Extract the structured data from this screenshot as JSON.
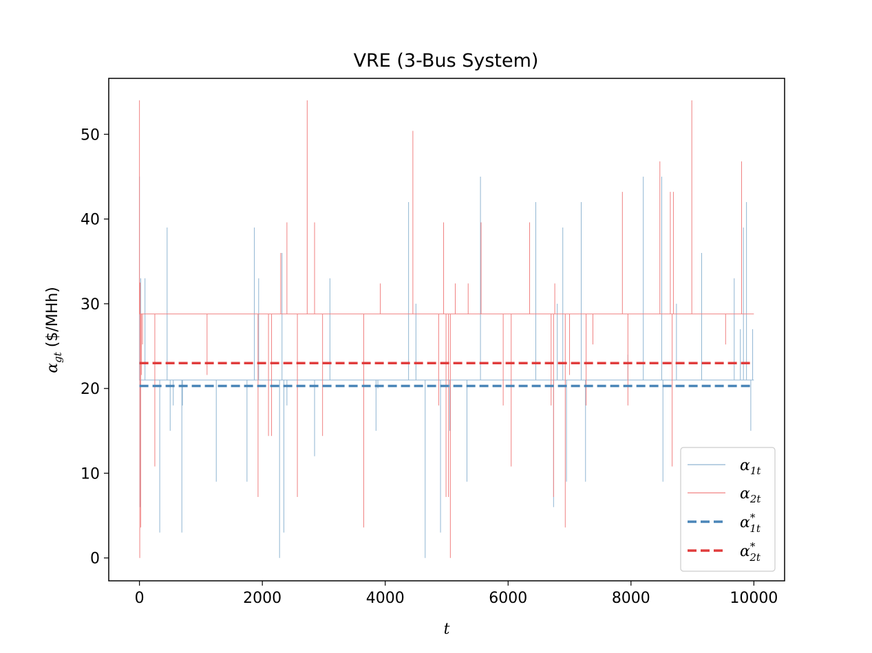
{
  "chart_data": {
    "type": "line",
    "title": "VRE (3-Bus System)",
    "xlabel_main": "t",
    "ylabel_symbol": "α",
    "ylabel_sub": "gt",
    "ylabel_unit": " ($/MHh)",
    "xlim": [
      -500,
      10500
    ],
    "ylim": [
      -2.7,
      56.6
    ],
    "xticks": [
      0,
      2000,
      4000,
      6000,
      8000,
      10000
    ],
    "yticks": [
      0,
      10,
      20,
      30,
      40,
      50
    ],
    "grid": false,
    "legend_position": "lower right",
    "series": [
      {
        "name": "α1t",
        "sub": "1t",
        "style": "solid-thin",
        "color": "#8fb5d2",
        "baseline": 21,
        "x_end": 10000,
        "spikes": [
          [
            0,
            45
          ],
          [
            10,
            6
          ],
          [
            20,
            33
          ],
          [
            30,
            21
          ],
          [
            90,
            33
          ],
          [
            330,
            3
          ],
          [
            450,
            39
          ],
          [
            500,
            15
          ],
          [
            550,
            18
          ],
          [
            690,
            3
          ],
          [
            700,
            18
          ],
          [
            1250,
            9
          ],
          [
            1750,
            9
          ],
          [
            1870,
            39
          ],
          [
            1940,
            33
          ],
          [
            2280,
            0
          ],
          [
            2320,
            36
          ],
          [
            2350,
            3
          ],
          [
            2400,
            18
          ],
          [
            2850,
            12
          ],
          [
            3100,
            33
          ],
          [
            3850,
            15
          ],
          [
            3880,
            20
          ],
          [
            4380,
            42
          ],
          [
            4500,
            30
          ],
          [
            4650,
            0
          ],
          [
            4900,
            3
          ],
          [
            5050,
            15
          ],
          [
            5330,
            9
          ],
          [
            5550,
            45
          ],
          [
            6450,
            42
          ],
          [
            6740,
            6
          ],
          [
            6800,
            30
          ],
          [
            6890,
            39
          ],
          [
            6950,
            9
          ],
          [
            7190,
            42
          ],
          [
            7260,
            9
          ],
          [
            7950,
            24
          ],
          [
            8200,
            45
          ],
          [
            8500,
            45
          ],
          [
            8520,
            9
          ],
          [
            8740,
            30
          ],
          [
            9150,
            36
          ],
          [
            9680,
            33
          ],
          [
            9780,
            27
          ],
          [
            9830,
            39
          ],
          [
            9880,
            42
          ],
          [
            9950,
            15
          ],
          [
            9980,
            27
          ]
        ]
      },
      {
        "name": "α2t",
        "sub": "2t",
        "style": "solid-thin",
        "color": "#f08080",
        "baseline": 28.8,
        "x_end": 10000,
        "spikes": [
          [
            0,
            54
          ],
          [
            5,
            0
          ],
          [
            12,
            32.5
          ],
          [
            20,
            3.6
          ],
          [
            30,
            21.6
          ],
          [
            50,
            25.2
          ],
          [
            250,
            10.8
          ],
          [
            1100,
            21.6
          ],
          [
            1930,
            7.2
          ],
          [
            2100,
            14.4
          ],
          [
            2150,
            14.4
          ],
          [
            2300,
            36
          ],
          [
            2400,
            39.6
          ],
          [
            2570,
            7.2
          ],
          [
            2730,
            54
          ],
          [
            2850,
            39.6
          ],
          [
            2980,
            14.4
          ],
          [
            3650,
            3.6
          ],
          [
            3920,
            32.4
          ],
          [
            4450,
            50.4
          ],
          [
            4870,
            18
          ],
          [
            4950,
            39.6
          ],
          [
            4990,
            7.2
          ],
          [
            5030,
            7.2
          ],
          [
            5060,
            0
          ],
          [
            5060,
            14.4
          ],
          [
            5140,
            32.4
          ],
          [
            5350,
            32.4
          ],
          [
            5560,
            39.6
          ],
          [
            5920,
            18
          ],
          [
            6050,
            10.8
          ],
          [
            6350,
            39.6
          ],
          [
            6700,
            18
          ],
          [
            6740,
            7.2
          ],
          [
            6760,
            32.4
          ],
          [
            6930,
            3.6
          ],
          [
            7000,
            21.6
          ],
          [
            7270,
            18
          ],
          [
            7380,
            25.2
          ],
          [
            7860,
            43.2
          ],
          [
            7950,
            18
          ],
          [
            8470,
            46.8
          ],
          [
            8640,
            43.2
          ],
          [
            8670,
            10.8
          ],
          [
            8690,
            43.2
          ],
          [
            8990,
            54
          ],
          [
            9540,
            25.2
          ],
          [
            9800,
            46.8
          ]
        ]
      },
      {
        "name": "α*1t",
        "sub": "1t",
        "sup": "*",
        "style": "dashed",
        "color": "#4a86b8",
        "x": [
          0,
          10000
        ],
        "y": [
          20.3,
          20.3
        ]
      },
      {
        "name": "α*2t",
        "sub": "2t",
        "sup": "*",
        "style": "dashed",
        "color": "#e03c3c",
        "x": [
          0,
          10000
        ],
        "y": [
          23.0,
          23.0
        ]
      }
    ]
  }
}
